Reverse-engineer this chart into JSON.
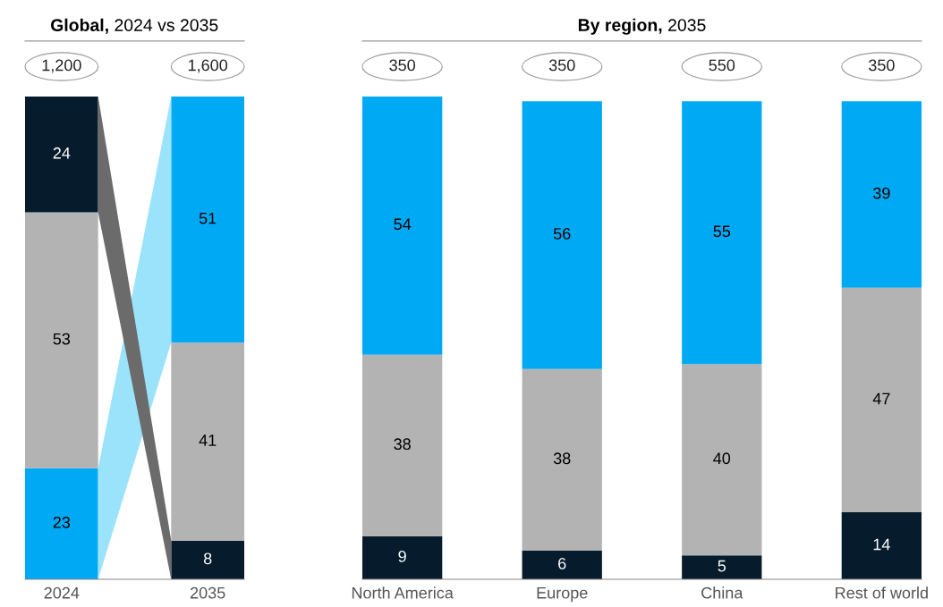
{
  "chart_data": [
    {
      "type": "bar",
      "title": "Global, 2024 vs 2035",
      "stacked": true,
      "data_labels": true,
      "categories": [
        "2024",
        "2035"
      ],
      "series": [
        {
          "color": "#00a9f4",
          "values": [
            23,
            null
          ]
        },
        {
          "color": "#061c2c",
          "values": [
            null,
            8
          ]
        },
        {
          "color": "#b3b3b3",
          "values": [
            53,
            41
          ]
        },
        {
          "color": "#00a9f4",
          "values": [
            null,
            51
          ]
        },
        {
          "color": "#061c2c",
          "values": [
            24,
            null
          ]
        }
      ],
      "annotations": [
        "1,200",
        "1,600"
      ],
      "grid": false,
      "legend": false
    },
    {
      "type": "bar",
      "title": "By region, 2035",
      "stacked": true,
      "data_labels": true,
      "categories": [
        "North America",
        "Europe",
        "China",
        "Rest of world"
      ],
      "series": [
        {
          "color": "#061c2c",
          "values": [
            9,
            6,
            5,
            14
          ]
        },
        {
          "color": "#b3b3b3",
          "values": [
            38,
            38,
            40,
            47
          ]
        },
        {
          "color": "#00a9f4",
          "values": [
            54,
            56,
            55,
            39
          ]
        }
      ],
      "annotations": [
        "350",
        "350",
        "550",
        "350"
      ],
      "grid": false,
      "legend": false
    }
  ]
}
